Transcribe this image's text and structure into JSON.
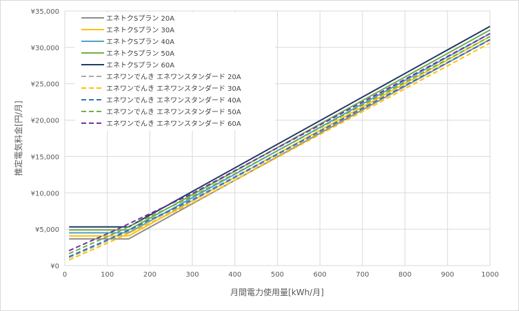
{
  "chart_data": {
    "type": "line",
    "title": "",
    "xlabel": "月間電力使用量[kWh/月]",
    "ylabel": "推定電気料金[円/月]",
    "xlim": [
      0,
      1000
    ],
    "ylim": [
      0,
      35000
    ],
    "x_ticks": [
      0,
      100,
      200,
      300,
      400,
      500,
      600,
      700,
      800,
      900,
      1000
    ],
    "y_ticks": [
      0,
      5000,
      10000,
      15000,
      20000,
      25000,
      30000,
      35000
    ],
    "y_tick_labels": [
      "¥0",
      "¥5,000",
      "¥10,000",
      "¥15,000",
      "¥20,000",
      "¥25,000",
      "¥30,000",
      "¥35,000"
    ],
    "grid": "vertical and horizontal",
    "legend_position": "top-left inside plot",
    "series": [
      {
        "name": "エネトクSプラン 20A",
        "color": "#8c8c8c",
        "dash": "solid",
        "x": [
          10,
          150,
          1000
        ],
        "y": [
          3660,
          3660,
          31100
        ]
      },
      {
        "name": "エネトクSプラン 30A",
        "color": "#ffc000",
        "dash": "solid",
        "x": [
          10,
          150,
          1000
        ],
        "y": [
          4080,
          4080,
          31500
        ]
      },
      {
        "name": "エネトクSプラン 40A",
        "color": "#4f9fc4",
        "dash": "solid",
        "x": [
          10,
          150,
          1000
        ],
        "y": [
          4500,
          4500,
          31900
        ]
      },
      {
        "name": "エネトクSプラン 50A",
        "color": "#70ad47",
        "dash": "solid",
        "x": [
          10,
          150,
          1000
        ],
        "y": [
          4900,
          4900,
          32400
        ]
      },
      {
        "name": "エネトクSプラン 60A",
        "color": "#203864",
        "dash": "solid",
        "x": [
          10,
          150,
          1000
        ],
        "y": [
          5330,
          5330,
          32900
        ]
      },
      {
        "name": "エネワンでんき エネワンスタンダード 20A",
        "color": "#a6a6a6",
        "dash": "dashed",
        "x": [
          10,
          120,
          300,
          1000
        ],
        "y": [
          1100,
          3900,
          8900,
          31100
        ]
      },
      {
        "name": "エネワンでんき エネワンスタンダード 30A",
        "color": "#ffc000",
        "dash": "dashed",
        "x": [
          10,
          120,
          300,
          1000
        ],
        "y": [
          780,
          3600,
          8600,
          30600
        ]
      },
      {
        "name": "エネワンでんき エネワンスタンダード 40A",
        "color": "#2e75b6",
        "dash": "dashed",
        "x": [
          10,
          120,
          300,
          1000
        ],
        "y": [
          1230,
          4050,
          9050,
          31050
        ]
      },
      {
        "name": "エネワンでんき エネワンスタンダード 50A",
        "color": "#70ad47",
        "dash": "dashed",
        "x": [
          10,
          120,
          300,
          1000
        ],
        "y": [
          1650,
          4500,
          9500,
          31500
        ]
      },
      {
        "name": "エネワンでんき エネワンスタンダード 60A",
        "color": "#7030a0",
        "dash": "dashed",
        "x": [
          10,
          120,
          300,
          1000
        ],
        "y": [
          2050,
          4900,
          9900,
          31900
        ]
      }
    ]
  }
}
